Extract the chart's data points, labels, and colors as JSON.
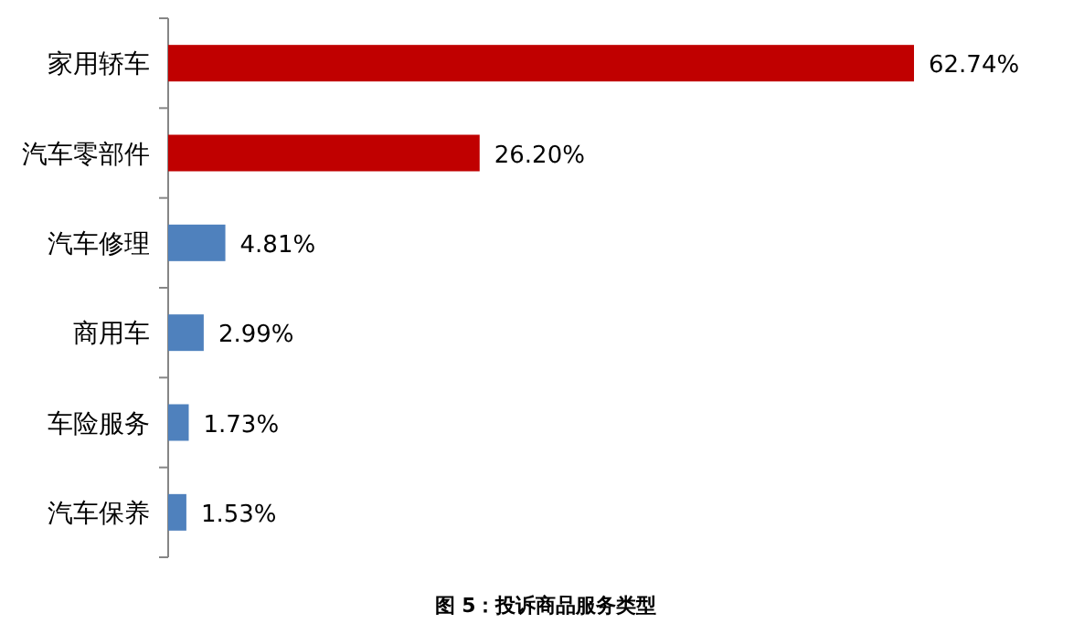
{
  "chart_data": {
    "type": "bar",
    "orientation": "horizontal",
    "title": "图 5：投诉商品服务类型",
    "categories": [
      "家用轿车",
      "汽车零部件",
      "汽车修理",
      "商用车",
      "车险服务",
      "汽车保养"
    ],
    "values": [
      62.74,
      26.2,
      4.81,
      2.99,
      1.73,
      1.53
    ],
    "colors": [
      "#c00000",
      "#c00000",
      "#4f81bd",
      "#4f81bd",
      "#4f81bd",
      "#4f81bd"
    ],
    "value_labels": [
      "62.74%",
      "26.20%",
      "4.81%",
      "2.99%",
      "1.73%",
      "1.53%"
    ]
  }
}
